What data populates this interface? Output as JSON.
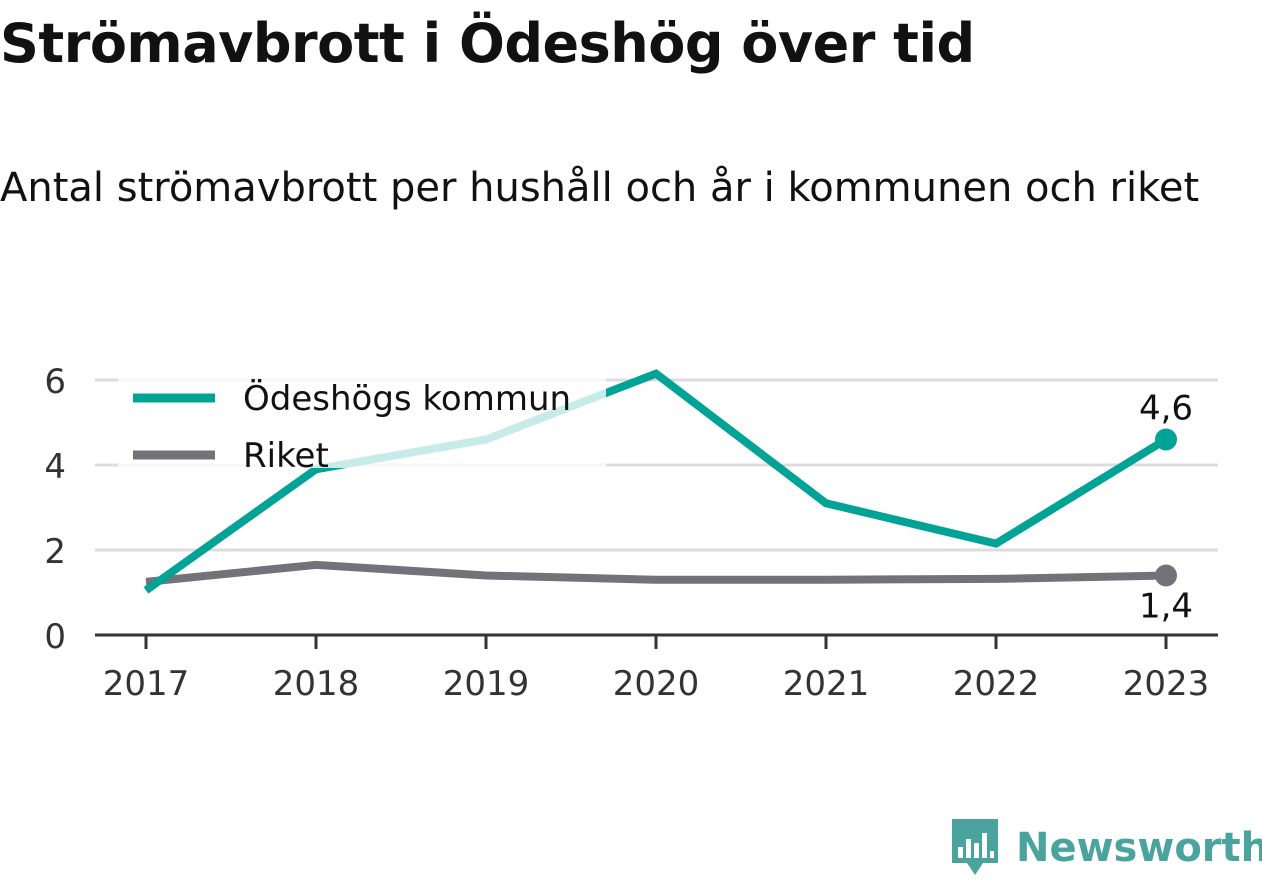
{
  "title": "Strömavbrott i Ödeshög över tid",
  "subtitle": "Antal strömavbrott per hushåll och år i kommunen och riket",
  "brand": {
    "name": "Newsworthy",
    "icon": "bar-chart-speech-bubble-logo",
    "color": "#4aa39c"
  },
  "chart_data": {
    "type": "line",
    "x": [
      "2017",
      "2018",
      "2019",
      "2020",
      "2021",
      "2022",
      "2023"
    ],
    "ylim": [
      0,
      6.2
    ],
    "yticks": [
      "0",
      "2",
      "4",
      "6"
    ],
    "grid": true,
    "legend_position": "top-left",
    "series": [
      {
        "name": "Ödeshögs kommun",
        "color": "#00a395",
        "values": [
          1.05,
          3.9,
          4.6,
          6.15,
          3.1,
          2.15,
          4.6
        ],
        "end_label": "4,6"
      },
      {
        "name": "Riket",
        "color": "#737278",
        "values": [
          1.25,
          1.65,
          1.4,
          1.3,
          1.3,
          1.32,
          1.4
        ],
        "end_label": "1,4"
      }
    ]
  }
}
